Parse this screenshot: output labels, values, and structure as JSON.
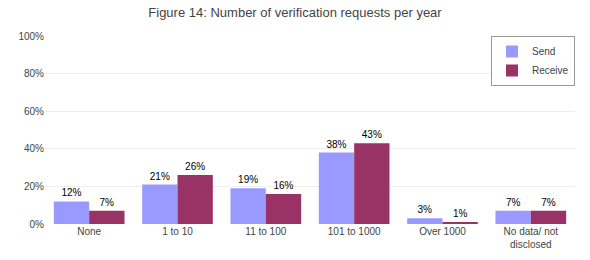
{
  "chart_data": {
    "type": "bar",
    "title": "Figure 14: Number of verification requests per year",
    "categories": [
      "None",
      "1 to 10",
      "11 to 100",
      "101 to 1000",
      "Over 1000",
      "No data/ not\ndisclosed"
    ],
    "series": [
      {
        "name": "Send",
        "color": "#9999FF",
        "values": [
          12,
          21,
          19,
          38,
          3,
          7
        ],
        "value_labels": [
          "12%",
          "21%",
          "19%",
          "38%",
          "3%",
          "7%"
        ]
      },
      {
        "name": "Receive",
        "color": "#993366",
        "values": [
          7,
          26,
          16,
          43,
          1,
          7
        ],
        "value_labels": [
          "7%",
          "26%",
          "16%",
          "43%",
          "1%",
          "7%"
        ]
      }
    ],
    "ylim": [
      0,
      100
    ],
    "yticks": [
      {
        "value": 0,
        "label": "0%"
      },
      {
        "value": 20,
        "label": "20%"
      },
      {
        "value": 40,
        "label": "40%"
      },
      {
        "value": 60,
        "label": "60%"
      },
      {
        "value": 80,
        "label": "80%"
      },
      {
        "value": 100,
        "label": "100%"
      }
    ],
    "grid": true,
    "legend": "upper right",
    "data_labels": true
  }
}
